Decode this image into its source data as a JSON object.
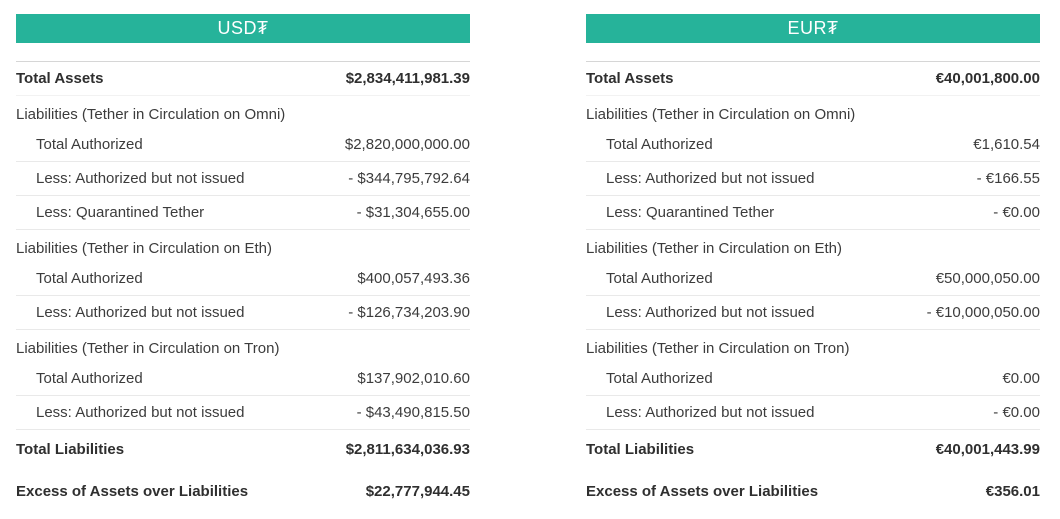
{
  "theme": {
    "header_bg": "#26b39a",
    "header_text": "#ffffff",
    "page_bg": "#ffffff",
    "text": "#3c3c3c",
    "text_bold": "#2f2f2f",
    "divider": "#e9e9e9",
    "divider_strong": "#d6d6d6",
    "divider_faint": "#f2f2f2"
  },
  "tables": [
    {
      "id": "usdt",
      "header": "USD₮",
      "rows": [
        {
          "type": "total_assets",
          "label": "Total Assets",
          "value": "$2,834,411,981.39"
        },
        {
          "type": "section",
          "label": "Liabilities (Tether in Circulation on Omni)"
        },
        {
          "type": "item",
          "label": "Total Authorized",
          "value": "$2,820,000,000.00"
        },
        {
          "type": "item",
          "label": "Less: Authorized but not issued",
          "value": "- $344,795,792.64"
        },
        {
          "type": "item",
          "label": "Less: Quarantined Tether",
          "value": "- $31,304,655.00"
        },
        {
          "type": "section",
          "label": "Liabilities (Tether in Circulation on Eth)"
        },
        {
          "type": "item",
          "label": "Total Authorized",
          "value": "$400,057,493.36"
        },
        {
          "type": "item",
          "label": "Less: Authorized but not issued",
          "value": "- $126,734,203.90"
        },
        {
          "type": "section",
          "label": "Liabilities (Tether in Circulation on Tron)"
        },
        {
          "type": "item",
          "label": "Total Authorized",
          "value": "$137,902,010.60"
        },
        {
          "type": "item",
          "label": "Less: Authorized but not issued",
          "value": "- $43,490,815.50"
        },
        {
          "type": "total",
          "label": "Total Liabilities",
          "value": "$2,811,634,036.93"
        },
        {
          "type": "total",
          "label": "Excess of Assets over Liabilities",
          "value": "$22,777,944.45"
        }
      ]
    },
    {
      "id": "eurt",
      "header": "EUR₮",
      "rows": [
        {
          "type": "total_assets",
          "label": "Total Assets",
          "value": "€40,001,800.00"
        },
        {
          "type": "section",
          "label": "Liabilities (Tether in Circulation on Omni)"
        },
        {
          "type": "item",
          "label": "Total Authorized",
          "value": "€1,610.54"
        },
        {
          "type": "item",
          "label": "Less: Authorized but not issued",
          "value": "- €166.55"
        },
        {
          "type": "item",
          "label": "Less: Quarantined Tether",
          "value": "- €0.00"
        },
        {
          "type": "section",
          "label": "Liabilities (Tether in Circulation on Eth)"
        },
        {
          "type": "item",
          "label": "Total Authorized",
          "value": "€50,000,050.00"
        },
        {
          "type": "item",
          "label": "Less: Authorized but not issued",
          "value": "- €10,000,050.00"
        },
        {
          "type": "section",
          "label": "Liabilities (Tether in Circulation on Tron)"
        },
        {
          "type": "item",
          "label": "Total Authorized",
          "value": "€0.00"
        },
        {
          "type": "item",
          "label": "Less: Authorized but not issued",
          "value": "- €0.00"
        },
        {
          "type": "total",
          "label": "Total Liabilities",
          "value": "€40,001,443.99"
        },
        {
          "type": "total",
          "label": "Excess of Assets over Liabilities",
          "value": "€356.01"
        }
      ]
    }
  ]
}
